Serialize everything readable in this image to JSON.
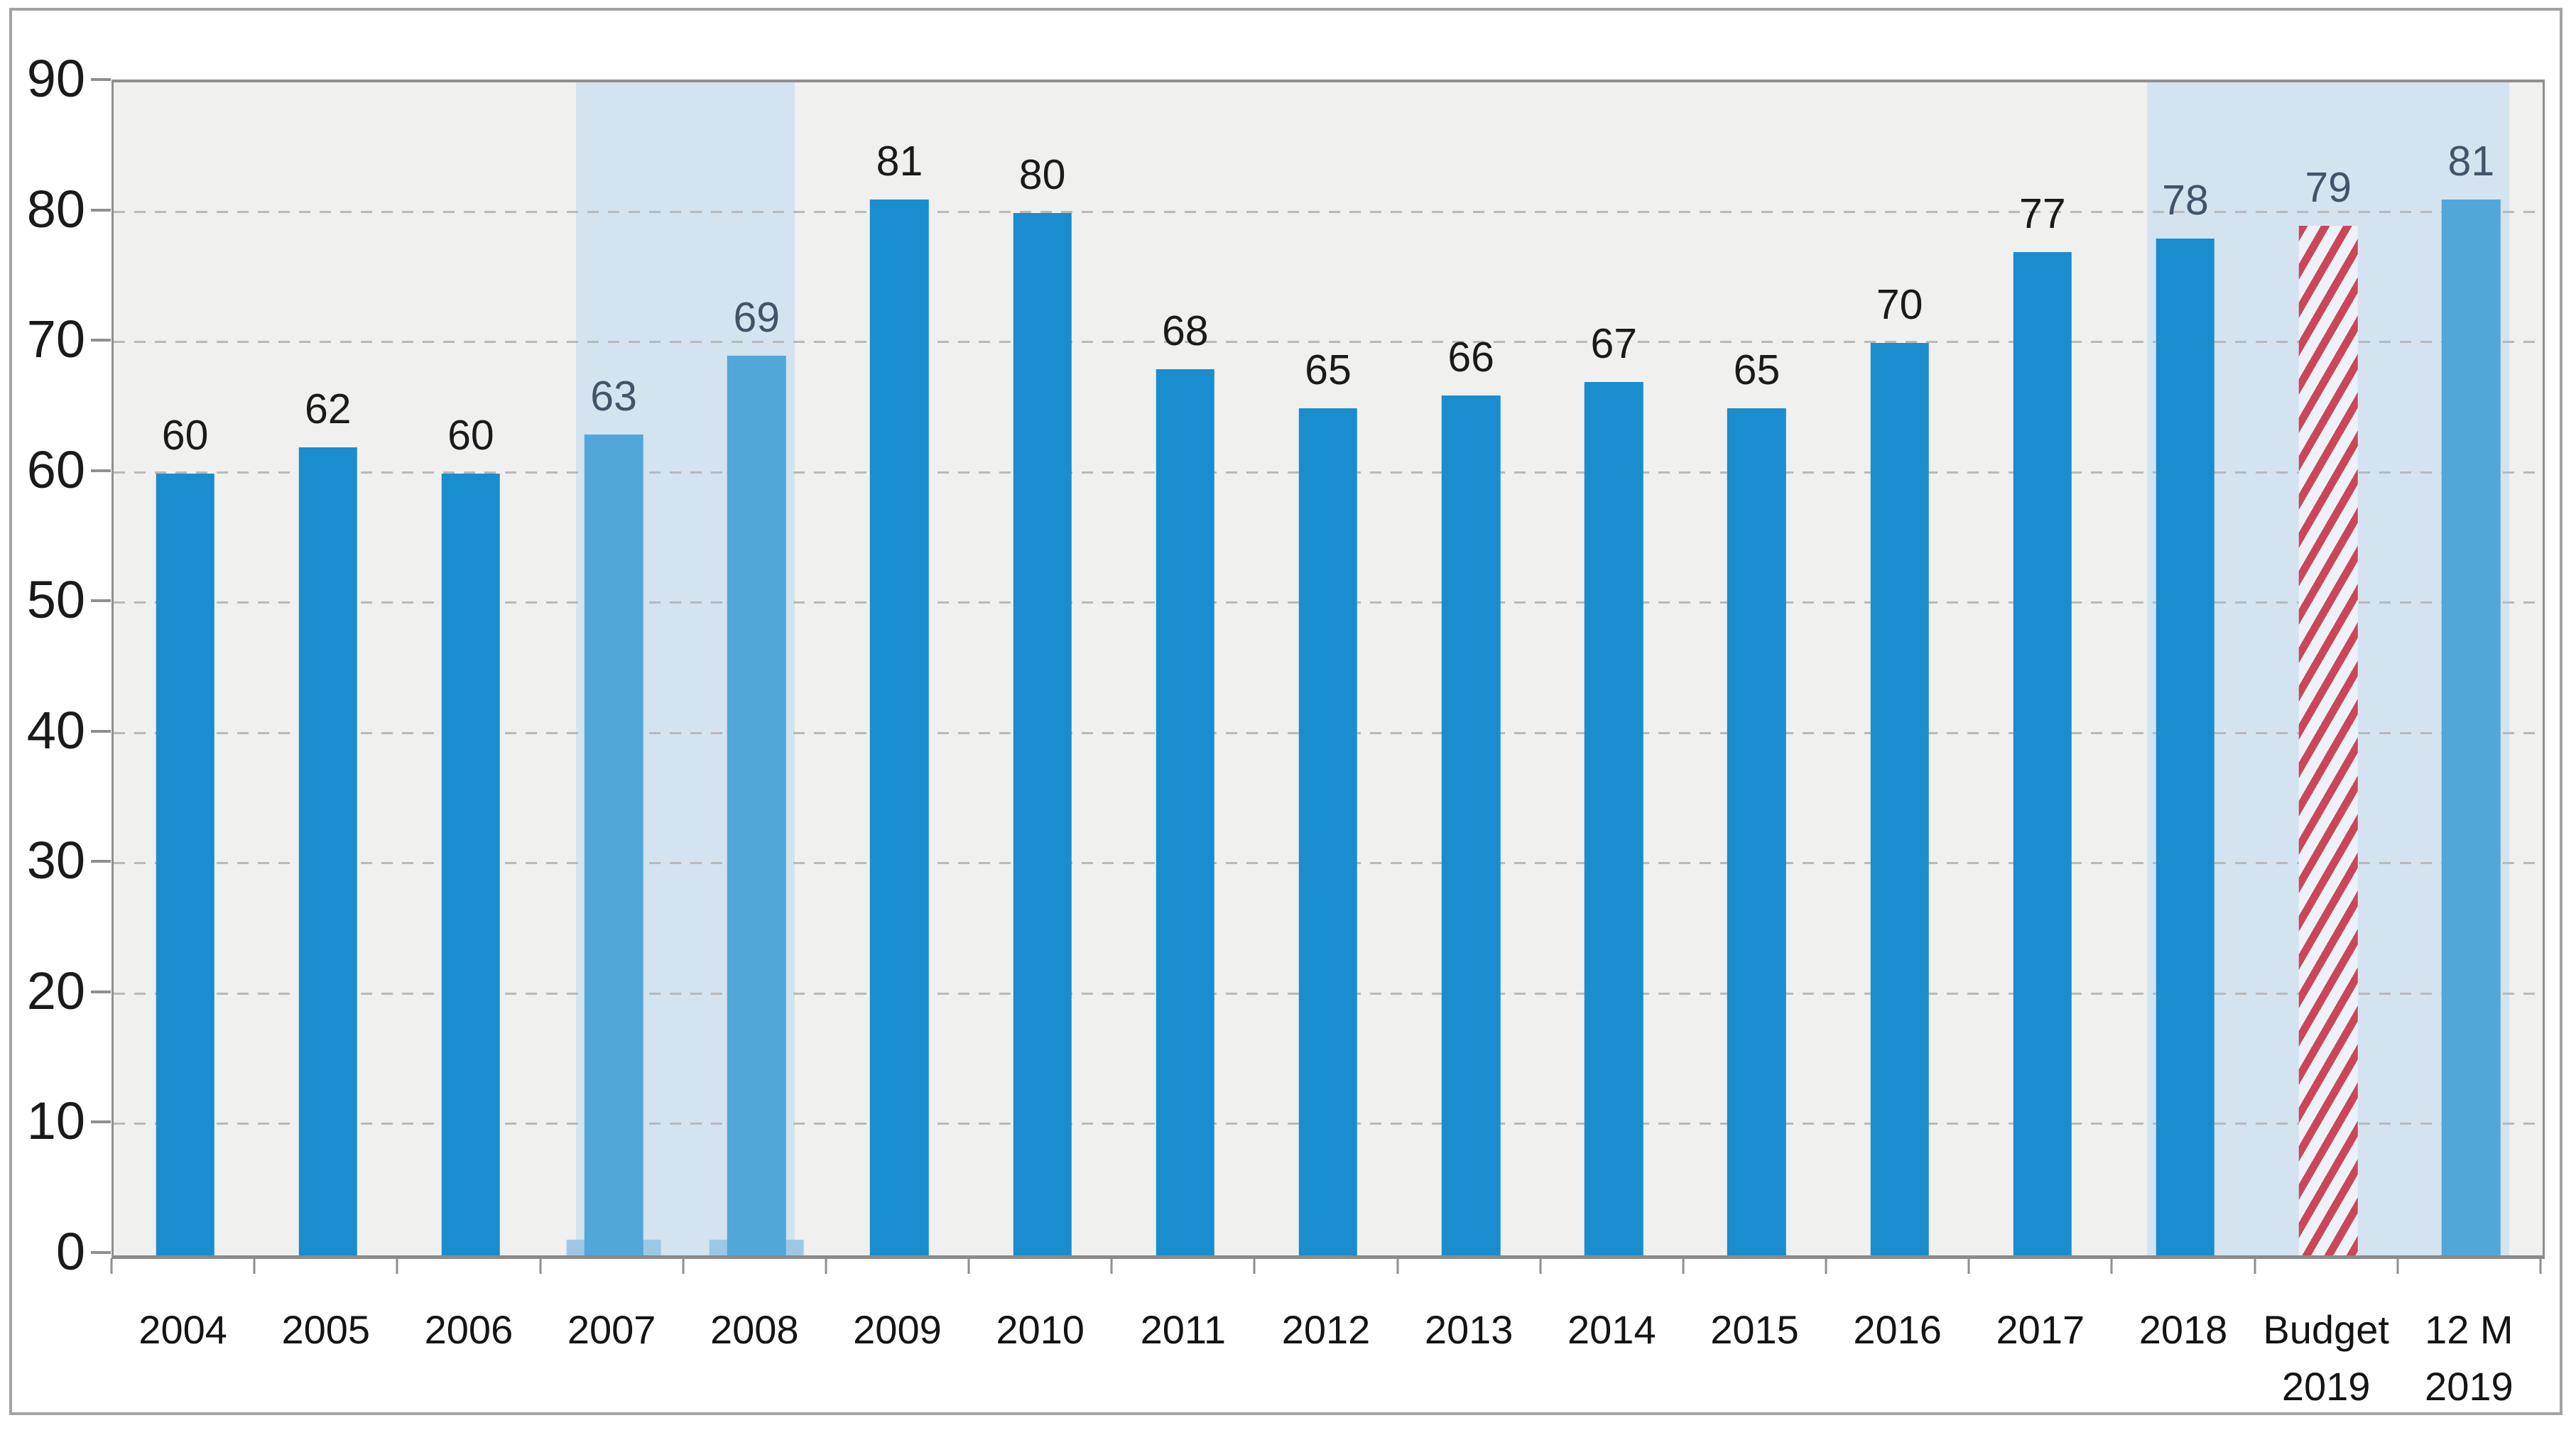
{
  "chart_data": {
    "type": "bar",
    "title": "",
    "xlabel": "",
    "ylabel": "",
    "legend": "none",
    "grid": "horizontal-dashed",
    "ylim": [
      0,
      90
    ],
    "yticks": [
      0,
      10,
      20,
      30,
      40,
      50,
      60,
      70,
      80,
      90
    ],
    "categories": [
      "2004",
      "2005",
      "2006",
      "2007",
      "2008",
      "2009",
      "2010",
      "2011",
      "2012",
      "2013",
      "2014",
      "2015",
      "2016",
      "2017",
      "2018",
      "Budget\n2019",
      "12 M\n2019"
    ],
    "values": [
      60,
      62,
      60,
      63,
      69,
      81,
      80,
      68,
      65,
      66,
      67,
      65,
      70,
      77,
      78,
      79,
      81
    ],
    "bar_styles": [
      "solid",
      "solid",
      "solid",
      "light",
      "light",
      "solid",
      "solid",
      "solid",
      "solid",
      "solid",
      "solid",
      "solid",
      "solid",
      "solid",
      "solid",
      "hatched",
      "light"
    ],
    "label_styles": [
      "dark",
      "dark",
      "dark",
      "slate",
      "slate",
      "dark",
      "dark",
      "dark",
      "dark",
      "dark",
      "dark",
      "dark",
      "dark",
      "dark",
      "slate",
      "slate",
      "slate"
    ],
    "highlight_bands": [
      {
        "start_index": 3,
        "end_index": 5,
        "covers": "2007-2008"
      },
      {
        "start_index": 14,
        "end_index": 17,
        "covers": "2018-12 M 2019"
      }
    ],
    "base_strip_indices": [
      3,
      4
    ],
    "colors": {
      "bar_solid": "#1A8DCE",
      "bar_light": "#52A7D9",
      "hatch_red": "#CC4659",
      "hatch_bg": "#EDF2F8",
      "band": "#D3E3F0",
      "plot_bg": "#F0F0EF",
      "strip": "#9CC8E4",
      "label_dark": "#1A1A1A",
      "label_slate": "#41546A",
      "grid": "#B9B9B9",
      "axis": "#8F8F8F",
      "frame": "#A3A3A3"
    }
  }
}
